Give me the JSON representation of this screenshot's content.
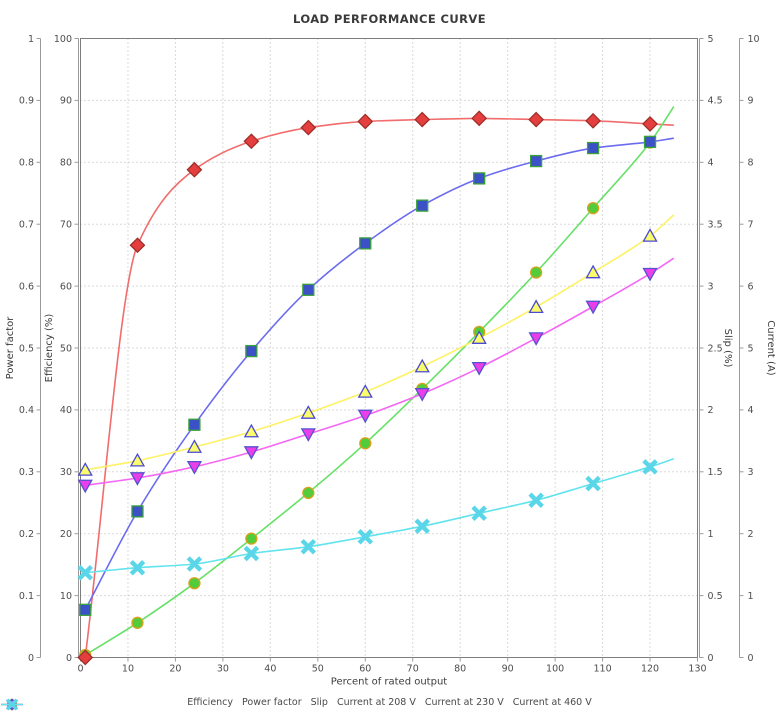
{
  "title": "LOAD PERFORMANCE CURVE",
  "x_axis": {
    "label": "Percent of rated output",
    "min": 0,
    "max": 130,
    "step": 10
  },
  "y_axes": [
    {
      "id": "power_factor",
      "label": "Power factor",
      "min": 0,
      "max": 1,
      "step": 0.1
    },
    {
      "id": "efficiency",
      "label": "Efficiency (%)",
      "min": 0,
      "max": 100,
      "step": 10
    },
    {
      "id": "slip",
      "label": "Slip (%)",
      "min": 0,
      "max": 5,
      "step": 0.5
    },
    {
      "id": "current",
      "label": "Current (A)",
      "min": 0,
      "max": 10,
      "step": 1
    }
  ],
  "chart_data": {
    "type": "line",
    "x": [
      1,
      12,
      24,
      36,
      48,
      60,
      72,
      84,
      96,
      108,
      120
    ],
    "line_extension_x": 125,
    "legend_position": "bottom",
    "grid": true,
    "series": [
      {
        "id": "efficiency",
        "name": "Efficiency",
        "axis": "efficiency",
        "marker": "diamond",
        "line_color": "#f16c6c",
        "marker_fill": "#e53e3e",
        "marker_stroke": "#9e2f28",
        "values": [
          0,
          66.6,
          78.8,
          83.4,
          85.6,
          86.6,
          86.9,
          87.1,
          86.9,
          86.7,
          86.2
        ],
        "extension_value": 86.0
      },
      {
        "id": "power_factor",
        "name": "Power factor",
        "axis": "power_factor",
        "marker": "square",
        "line_color": "#6b6bf0",
        "marker_fill": "#3c50c8",
        "marker_stroke": "#3aa23a",
        "values": [
          0.077,
          0.236,
          0.376,
          0.495,
          0.594,
          0.669,
          0.73,
          0.774,
          0.802,
          0.823,
          0.833
        ],
        "extension_value": 0.839
      },
      {
        "id": "slip",
        "name": "Slip",
        "axis": "slip",
        "marker": "circle",
        "line_color": "#66e166",
        "marker_fill": "#52cc3a",
        "marker_stroke": "#dba11f",
        "values": [
          0.02,
          0.28,
          0.6,
          0.96,
          1.33,
          1.73,
          2.17,
          2.63,
          3.11,
          3.63,
          4.16
        ],
        "extension_value": 4.45
      },
      {
        "id": "current_208",
        "name": "Current at 208 V",
        "axis": "current",
        "marker": "triangle-up",
        "line_color": "#fdf263",
        "marker_fill": "#fbfb6e",
        "marker_stroke": "#4a4ad2",
        "values": [
          3.03,
          3.18,
          3.4,
          3.65,
          3.95,
          4.29,
          4.7,
          5.16,
          5.66,
          6.22,
          6.81
        ],
        "extension_value": 7.15
      },
      {
        "id": "current_230",
        "name": "Current at 230 V",
        "axis": "current",
        "marker": "triangle-down",
        "line_color": "#f468f4",
        "marker_fill": "#e93ee9",
        "marker_stroke": "#5353cf",
        "values": [
          2.78,
          2.9,
          3.08,
          3.32,
          3.61,
          3.91,
          4.26,
          4.68,
          5.16,
          5.67,
          6.2
        ],
        "extension_value": 6.45
      },
      {
        "id": "current_460",
        "name": "Current at 460 V",
        "axis": "current",
        "marker": "x",
        "line_color": "#62e3ee",
        "marker_fill": "#5ad6e8",
        "marker_stroke": "#5ad6e8",
        "values": [
          1.37,
          1.45,
          1.51,
          1.68,
          1.79,
          1.95,
          2.12,
          2.33,
          2.54,
          2.81,
          3.08
        ],
        "extension_value": 3.21
      }
    ]
  },
  "colors": {
    "grid": "#b5b5b5",
    "border": "#7d7d7d",
    "axis_line": "#9b9b9b",
    "tick_text": "#4d4d4d",
    "title_text": "#3a3a3a",
    "background": "#ffffff"
  }
}
